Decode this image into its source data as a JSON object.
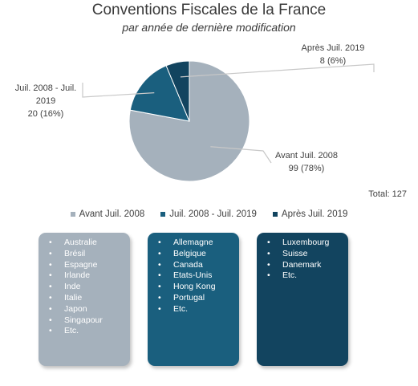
{
  "chart_data": {
    "type": "pie",
    "title": "Conventions Fiscales de la France",
    "subtitle": "par année de dernière modification",
    "slices": [
      {
        "name": "Avant Juil. 2008",
        "value": 99,
        "percent_label": "99 (78%)",
        "color": "#a5b1bc"
      },
      {
        "name": "Juil. 2008 - Juil. 2019",
        "value": 20,
        "percent_label": "20 (16%)",
        "color": "#1a5f7e"
      },
      {
        "name": "Après Juil. 2019",
        "value": 8,
        "percent_label": "8 (6%)",
        "color": "#12445f"
      }
    ],
    "total_label": "Total: 127",
    "legend_position": "bottom"
  },
  "lists": [
    {
      "color": "#a5b1bc",
      "items": [
        "Australie",
        "Brésil",
        "Espagne",
        "Irlande",
        "Inde",
        "Italie",
        "Japon",
        "Singapour",
        "Etc."
      ]
    },
    {
      "color": "#1a5f7e",
      "items": [
        "Allemagne",
        "Belgique",
        "Canada",
        "Etats-Unis",
        "Hong Kong",
        "Portugal",
        "Etc."
      ]
    },
    {
      "color": "#12445f",
      "items": [
        "Luxembourg",
        "Suisse",
        "Danemark",
        "Etc."
      ]
    }
  ]
}
